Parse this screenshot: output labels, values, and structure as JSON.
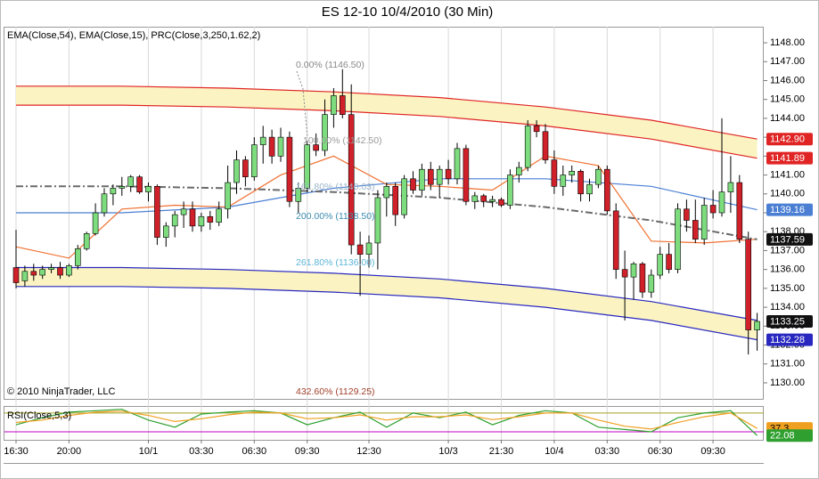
{
  "chart_data": [
    {
      "type": "candlestick",
      "title": "ES 12-10  10/4/2010 (30 Min)",
      "subtitle": "EMA(Close,54), EMA(Close,15), PRC(Close,3,250,1.62,2)",
      "annotation": "© 2010 NinjaTrader, LLC",
      "categories": [
        "16:30",
        null,
        null,
        null,
        null,
        null,
        "20:00",
        null,
        null,
        null,
        null,
        null,
        null,
        null,
        null,
        "10/1",
        null,
        null,
        null,
        null,
        null,
        "03:30",
        null,
        null,
        null,
        null,
        null,
        "06:30",
        null,
        null,
        null,
        null,
        null,
        "09:30",
        null,
        null,
        null,
        null,
        null,
        null,
        "12:30",
        null,
        null,
        null,
        null,
        null,
        null,
        null,
        null,
        "10/3",
        null,
        null,
        null,
        null,
        null,
        "21:30",
        null,
        null,
        null,
        null,
        null,
        "10/4",
        null,
        null,
        null,
        null,
        null,
        "03:30",
        null,
        null,
        null,
        null,
        null,
        "06:30",
        null,
        null,
        null,
        null,
        null,
        "09:30",
        null,
        null,
        null,
        null,
        null
      ],
      "open": [
        1136.1,
        1135.4,
        1135.9,
        1135.7,
        1136.0,
        1136.1,
        1135.7,
        1136.2,
        1137.1,
        1137.9,
        1139.0,
        1140.0,
        1140.3,
        1140.4,
        1140.9,
        1140.1,
        1140.4,
        1137.7,
        1138.3,
        1138.9,
        1139.2,
        1138.3,
        1138.8,
        1138.5,
        1139.2,
        1140.6,
        1141.8,
        1140.9,
        1142.6,
        1143.0,
        1142.0,
        1143.0,
        1139.6,
        1140.3,
        1142.6,
        1142.3,
        1144.2,
        1145.2,
        1144.2,
        1137.3,
        1136.8,
        1137.4,
        1139.8,
        1140.4,
        1138.9,
        1140.8,
        1140.2,
        1141.3,
        1140.5,
        1141.3,
        1140.8,
        1142.4,
        1139.6,
        1139.9,
        1139.6,
        1139.7,
        1139.4,
        1141.0,
        1141.4,
        1143.6,
        1143.3,
        1141.8,
        1140.4,
        1141.0,
        1141.2,
        1140.0,
        1140.5,
        1141.3,
        1139.1,
        1136.0,
        1135.6,
        1136.3,
        1134.8,
        1135.7,
        1136.8,
        1136.0,
        1139.2,
        1138.6,
        1137.6,
        1139.4,
        1139.0,
        1140.1,
        1140.6,
        1137.6,
        1132.8
      ],
      "high": [
        1138.1,
        1136.2,
        1136.3,
        1136.2,
        1136.3,
        1136.4,
        1136.3,
        1137.3,
        1138.0,
        1139.5,
        1140.3,
        1140.5,
        1140.9,
        1141.0,
        1141.0,
        1140.6,
        1140.5,
        1138.5,
        1139.1,
        1139.6,
        1139.6,
        1139.0,
        1139.1,
        1139.6,
        1141.5,
        1142.3,
        1142.0,
        1143.0,
        1143.6,
        1143.4,
        1143.5,
        1143.3,
        1140.6,
        1142.8,
        1143.2,
        1145.0,
        1145.6,
        1146.6,
        1145.8,
        1138.0,
        1137.8,
        1140.2,
        1140.6,
        1140.6,
        1141.0,
        1141.2,
        1141.6,
        1141.7,
        1141.5,
        1141.8,
        1142.7,
        1142.6,
        1140.1,
        1140.0,
        1139.9,
        1139.8,
        1141.3,
        1141.7,
        1143.9,
        1143.9,
        1143.7,
        1142.3,
        1141.5,
        1141.5,
        1141.3,
        1140.8,
        1141.5,
        1141.5,
        1139.5,
        1137.0,
        1136.4,
        1136.4,
        1136.0,
        1137.2,
        1137.4,
        1139.5,
        1139.7,
        1139.7,
        1139.8,
        1140.2,
        1144.0,
        1142.0,
        1141.0,
        1138.0,
        1133.7
      ],
      "low": [
        1135.0,
        1135.1,
        1135.4,
        1135.5,
        1135.8,
        1135.5,
        1135.6,
        1136.0,
        1137.0,
        1137.8,
        1138.8,
        1139.4,
        1139.9,
        1140.1,
        1140.0,
        1139.6,
        1137.3,
        1137.2,
        1137.7,
        1138.2,
        1138.0,
        1138.0,
        1138.1,
        1138.3,
        1138.7,
        1140.0,
        1140.4,
        1140.7,
        1141.6,
        1141.6,
        1141.7,
        1139.3,
        1139.0,
        1140.1,
        1142.0,
        1142.0,
        1143.5,
        1144.0,
        1136.8,
        1134.6,
        1136.1,
        1136.0,
        1138.8,
        1138.3,
        1138.7,
        1140.0,
        1139.9,
        1140.2,
        1139.8,
        1140.5,
        1140.5,
        1139.4,
        1139.2,
        1139.3,
        1139.3,
        1139.3,
        1139.2,
        1140.6,
        1141.2,
        1143.0,
        1141.6,
        1140.0,
        1139.9,
        1140.6,
        1139.6,
        1139.6,
        1140.3,
        1138.9,
        1135.5,
        1133.3,
        1134.4,
        1134.5,
        1134.5,
        1135.5,
        1135.8,
        1135.8,
        1138.0,
        1137.4,
        1137.3,
        1138.7,
        1138.8,
        1139.0,
        1137.4,
        1131.5,
        1131.7
      ],
      "close": [
        1135.3,
        1135.9,
        1135.7,
        1136.0,
        1136.1,
        1135.7,
        1136.2,
        1137.1,
        1137.9,
        1139.0,
        1140.0,
        1140.3,
        1140.4,
        1140.9,
        1140.1,
        1140.4,
        1137.7,
        1138.3,
        1138.9,
        1139.2,
        1138.3,
        1138.8,
        1138.5,
        1139.2,
        1140.6,
        1141.8,
        1140.9,
        1142.6,
        1143.0,
        1142.0,
        1143.0,
        1139.6,
        1140.3,
        1142.6,
        1142.3,
        1144.2,
        1145.2,
        1144.2,
        1137.3,
        1136.8,
        1137.4,
        1139.8,
        1140.4,
        1138.9,
        1140.8,
        1140.2,
        1141.3,
        1140.5,
        1141.3,
        1140.8,
        1142.4,
        1139.6,
        1139.9,
        1139.6,
        1139.7,
        1139.4,
        1141.0,
        1141.4,
        1143.6,
        1143.3,
        1141.8,
        1140.4,
        1141.0,
        1141.2,
        1140.0,
        1140.5,
        1141.3,
        1139.1,
        1136.0,
        1135.6,
        1136.3,
        1134.8,
        1135.7,
        1136.8,
        1136.0,
        1139.2,
        1138.6,
        1137.6,
        1139.4,
        1139.0,
        1140.1,
        1140.6,
        1137.6,
        1132.8,
        1133.25
      ],
      "up_color": "#7ddc7d",
      "down_color": "#d0202a",
      "close_box_color": "#111111",
      "ylim": [
        1129.15,
        1148.85
      ],
      "yticks": [
        {
          "value": 1130,
          "label": "1130.00"
        },
        {
          "value": 1131,
          "label": "1131.00"
        },
        {
          "value": 1132,
          "label": "1132.00"
        },
        {
          "value": 1133,
          "label": "1133.00"
        },
        {
          "value": 1134,
          "label": "1134.00"
        },
        {
          "value": 1135,
          "label": "1135.00"
        },
        {
          "value": 1136,
          "label": "1136.00"
        },
        {
          "value": 1137,
          "label": "1137.00"
        },
        {
          "value": 1138,
          "label": "1138.00"
        },
        {
          "value": 1139,
          "label": "1139.00"
        },
        {
          "value": 1140,
          "label": "1140.00"
        },
        {
          "value": 1141,
          "label": "1141.00"
        },
        {
          "value": 1142,
          "label": "1142.00"
        },
        {
          "value": 1143,
          "label": "1143.00"
        },
        {
          "value": 1144,
          "label": "1144.00"
        },
        {
          "value": 1145,
          "label": "1145.00"
        },
        {
          "value": 1146,
          "label": "1146.00"
        },
        {
          "value": 1147,
          "label": "1147.00"
        },
        {
          "value": 1148,
          "label": "1148.00"
        }
      ],
      "bands": [
        {
          "fill": "#fbf4c2",
          "outer": {
            "color": "#e02424",
            "x": [
              0,
              12,
              24,
              36,
              48,
              60,
              72,
              84
            ],
            "values": [
              1145.7,
              1145.7,
              1145.6,
              1145.4,
              1145.1,
              1144.6,
              1143.9,
              1142.9
            ],
            "label": "1142.90"
          },
          "inner": {
            "color": "#e02424",
            "x": [
              0,
              12,
              24,
              36,
              48,
              60,
              72,
              84
            ],
            "values": [
              1144.7,
              1144.7,
              1144.6,
              1144.4,
              1144.1,
              1143.6,
              1142.9,
              1141.89
            ]
          }
        },
        {
          "fill": "#fbf4c2",
          "outer": {
            "color": "#2828c0",
            "x": [
              0,
              12,
              24,
              36,
              48,
              60,
              72,
              84
            ],
            "values": [
              1135.1,
              1135.1,
              1135.0,
              1134.8,
              1134.5,
              1134.0,
              1133.3,
              1132.28
            ]
          },
          "inner": {
            "color": "#2828c0",
            "x": [
              0,
              12,
              24,
              36,
              48,
              60,
              72,
              84
            ],
            "values": [
              1136.1,
              1136.1,
              1136.0,
              1135.8,
              1135.5,
              1135.0,
              1134.3,
              1133.3
            ]
          }
        }
      ],
      "overlays": [
        {
          "color": "#4a7fd4",
          "dashed": false,
          "x": [
            0,
            12,
            24,
            36,
            48,
            60,
            72,
            84
          ],
          "values": [
            1139.0,
            1139.0,
            1139.3,
            1140.3,
            1140.8,
            1140.8,
            1140.4,
            1139.16
          ],
          "box": true
        },
        {
          "color": "#f07030",
          "dashed": false,
          "x": [
            0,
            6,
            12,
            18,
            24,
            30,
            36,
            42,
            48,
            54,
            60,
            66,
            72,
            78,
            84
          ],
          "values": [
            1137.2,
            1136.6,
            1139.2,
            1139.4,
            1139.3,
            1141.0,
            1142.0,
            1140.5,
            1140.4,
            1140.2,
            1142.0,
            1141.5,
            1137.5,
            1137.4,
            1137.6
          ],
          "box": false
        },
        {
          "color": "#6a6a6a",
          "dashed": true,
          "x": [
            0,
            12,
            24,
            36,
            48,
            60,
            72,
            84
          ],
          "values": [
            1140.4,
            1140.4,
            1140.3,
            1140.1,
            1139.8,
            1139.3,
            1138.6,
            1137.59
          ],
          "box": true
        }
      ],
      "fib_levels": [
        "0.00% (1146.50)",
        "100.00% (1142.50)",
        "161.80% (1140.03)",
        "200.00% (1138.50)",
        "261.80% (1136.00)",
        "432.60% (1129.25)"
      ]
    },
    {
      "type": "line",
      "title": "RSI(Close,5,3)",
      "ylim": [
        13,
        85
      ],
      "hlines": [
        {
          "value": 70,
          "color": "#a0a020"
        },
        {
          "value": 30,
          "color": "#c000c0"
        }
      ],
      "x": [
        0,
        3,
        6,
        9,
        12,
        15,
        18,
        21,
        24,
        27,
        30,
        33,
        36,
        39,
        42,
        45,
        48,
        51,
        54,
        57,
        60,
        63,
        66,
        69,
        72,
        75,
        78,
        81,
        84
      ],
      "series": [
        {
          "color": "#2fa02f",
          "text_color": "#ffffff",
          "values": [
            45,
            60,
            72,
            75,
            78,
            55,
            40,
            68,
            72,
            75,
            70,
            45,
            60,
            72,
            40,
            70,
            60,
            72,
            45,
            65,
            75,
            70,
            40,
            35,
            30,
            60,
            70,
            75,
            22.08
          ]
        },
        {
          "color": "#f0a020",
          "text_color": "#000000",
          "values": [
            50,
            55,
            65,
            72,
            74,
            65,
            52,
            58,
            66,
            72,
            70,
            58,
            60,
            66,
            55,
            62,
            62,
            66,
            56,
            62,
            70,
            70,
            55,
            42,
            36,
            50,
            62,
            70,
            37.3
          ]
        }
      ]
    }
  ]
}
